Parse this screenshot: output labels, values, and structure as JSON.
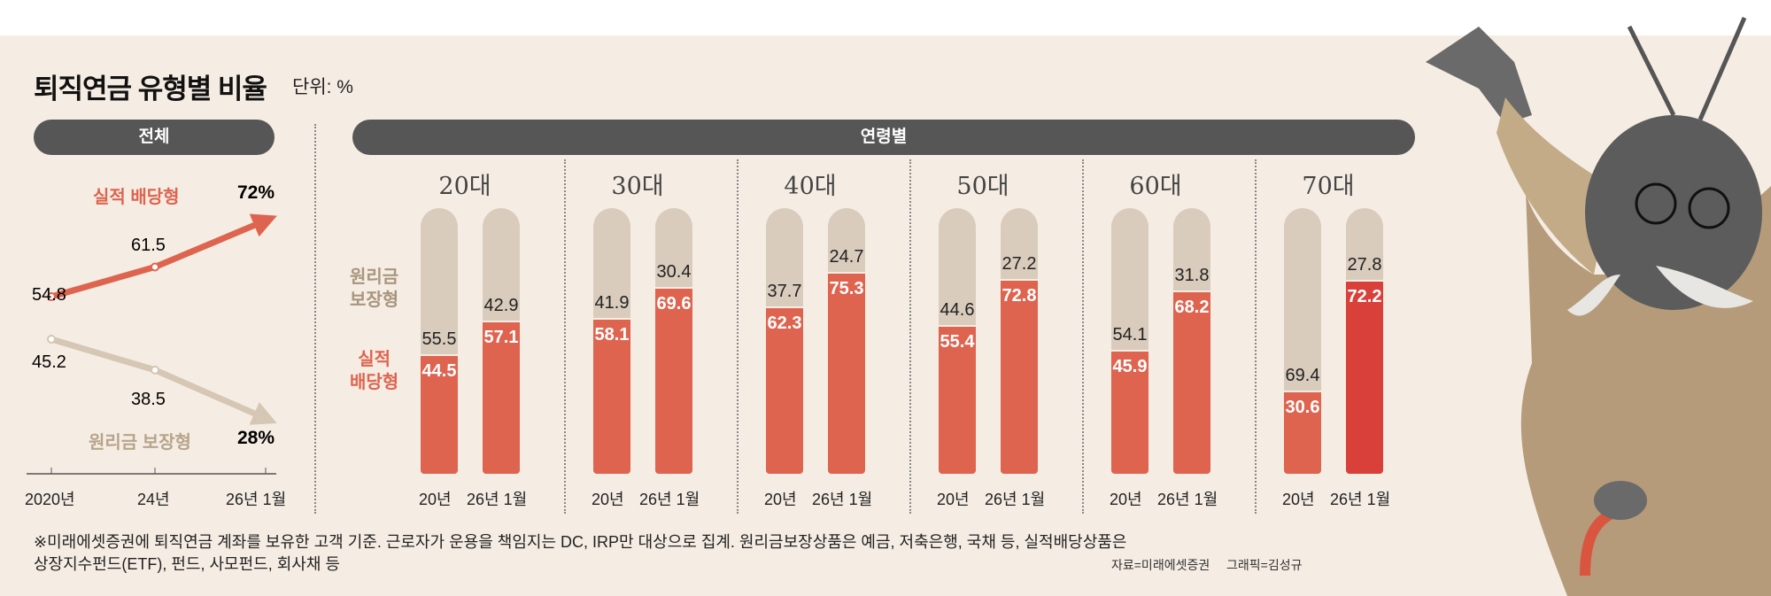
{
  "title": "퇴직연금 유형별 비율",
  "unit": "단위: %",
  "left_panel": {
    "header": "전체"
  },
  "right_panel": {
    "header": "연령별",
    "legend_guarantee": [
      "원리금",
      "보장형"
    ],
    "legend_performance": [
      "실적",
      "배당형"
    ]
  },
  "colors": {
    "performance": "#de6450",
    "guarantee": "#d9ccbc",
    "highlight": "#d9403a",
    "pill": "#575656",
    "background": "#f5ede3"
  },
  "chart_data": [
    {
      "type": "line",
      "title": "전체",
      "x": [
        "2020년",
        "24년",
        "26년 1월"
      ],
      "series": [
        {
          "name": "실적 배당형",
          "values": [
            54.8,
            61.5,
            72
          ],
          "labels": [
            "54.8",
            "61.5",
            "72%"
          ]
        },
        {
          "name": "원리금 보장형",
          "values": [
            45.2,
            38.5,
            28
          ],
          "labels": [
            "45.2",
            "38.5",
            "28%"
          ]
        }
      ]
    },
    {
      "type": "bar",
      "stacked": true,
      "title": "연령별",
      "ylim": [
        0,
        100
      ],
      "groups": [
        "20대",
        "30대",
        "40대",
        "50대",
        "60대",
        "70대"
      ],
      "categories": [
        "20년",
        "26년 1월"
      ],
      "series": [
        {
          "name": "원리금 보장형",
          "values": [
            [
              55.5,
              42.9
            ],
            [
              41.9,
              30.4
            ],
            [
              37.7,
              24.7
            ],
            [
              44.6,
              27.2
            ],
            [
              54.1,
              31.8
            ],
            [
              69.4,
              27.8
            ]
          ]
        },
        {
          "name": "실적 배당형",
          "values": [
            [
              44.5,
              57.1
            ],
            [
              58.1,
              69.6
            ],
            [
              62.3,
              75.3
            ],
            [
              55.4,
              72.8
            ],
            [
              45.9,
              68.2
            ],
            [
              30.6,
              72.2
            ]
          ]
        }
      ]
    }
  ],
  "footnote": [
    "※미래에셋증권에 퇴직연금 계좌를 보유한 고객 기준. 근로자가 운용을 책임지는 DC, IRP만 대상으로 집계. 원리금보장상품은 예금, 저축은행, 국채 등, 실적배당상품은",
    "상장지수펀드(ETF), 펀드, 사모펀드, 회사채 등"
  ],
  "source": "자료=미래에셋증권",
  "graphic": "그래픽=김성규"
}
